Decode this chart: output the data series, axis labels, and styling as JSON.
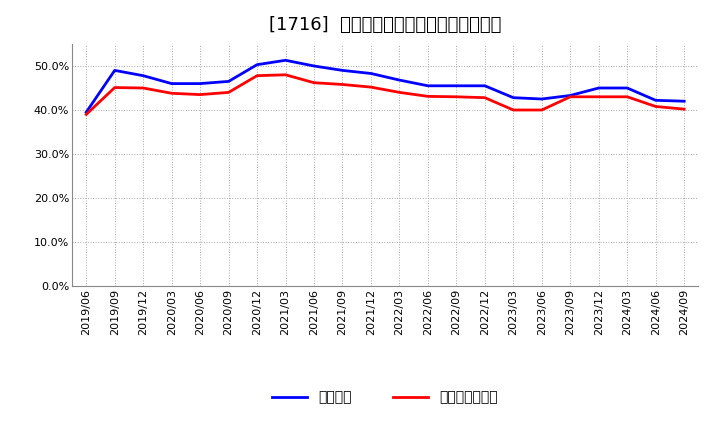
{
  "title": "[1716]  固定比率、固定長期適合率の推移",
  "x_labels": [
    "2019/06",
    "2019/09",
    "2019/12",
    "2020/03",
    "2020/06",
    "2020/09",
    "2020/12",
    "2021/03",
    "2021/06",
    "2021/09",
    "2021/12",
    "2022/03",
    "2022/06",
    "2022/09",
    "2022/12",
    "2023/03",
    "2023/06",
    "2023/09",
    "2023/12",
    "2024/03",
    "2024/06",
    "2024/09"
  ],
  "fixed_ratio": [
    0.395,
    0.49,
    0.478,
    0.46,
    0.46,
    0.465,
    0.503,
    0.513,
    0.5,
    0.49,
    0.483,
    0.468,
    0.455,
    0.455,
    0.455,
    0.428,
    0.425,
    0.433,
    0.45,
    0.45,
    0.422,
    0.42
  ],
  "fixed_long_ratio": [
    0.39,
    0.451,
    0.45,
    0.438,
    0.435,
    0.44,
    0.478,
    0.48,
    0.462,
    0.458,
    0.452,
    0.44,
    0.431,
    0.43,
    0.428,
    0.4,
    0.4,
    0.43,
    0.43,
    0.43,
    0.408,
    0.402
  ],
  "line1_color": "#0000ff",
  "line2_color": "#ff0000",
  "line1_label": "固定比率",
  "line2_label": "固定長期適合率",
  "ylim": [
    0.0,
    0.55
  ],
  "yticks": [
    0.0,
    0.1,
    0.2,
    0.3,
    0.4,
    0.5
  ],
  "background_color": "#ffffff",
  "grid_color": "#aaaaaa",
  "title_fontsize": 13,
  "legend_fontsize": 10,
  "tick_fontsize": 8
}
